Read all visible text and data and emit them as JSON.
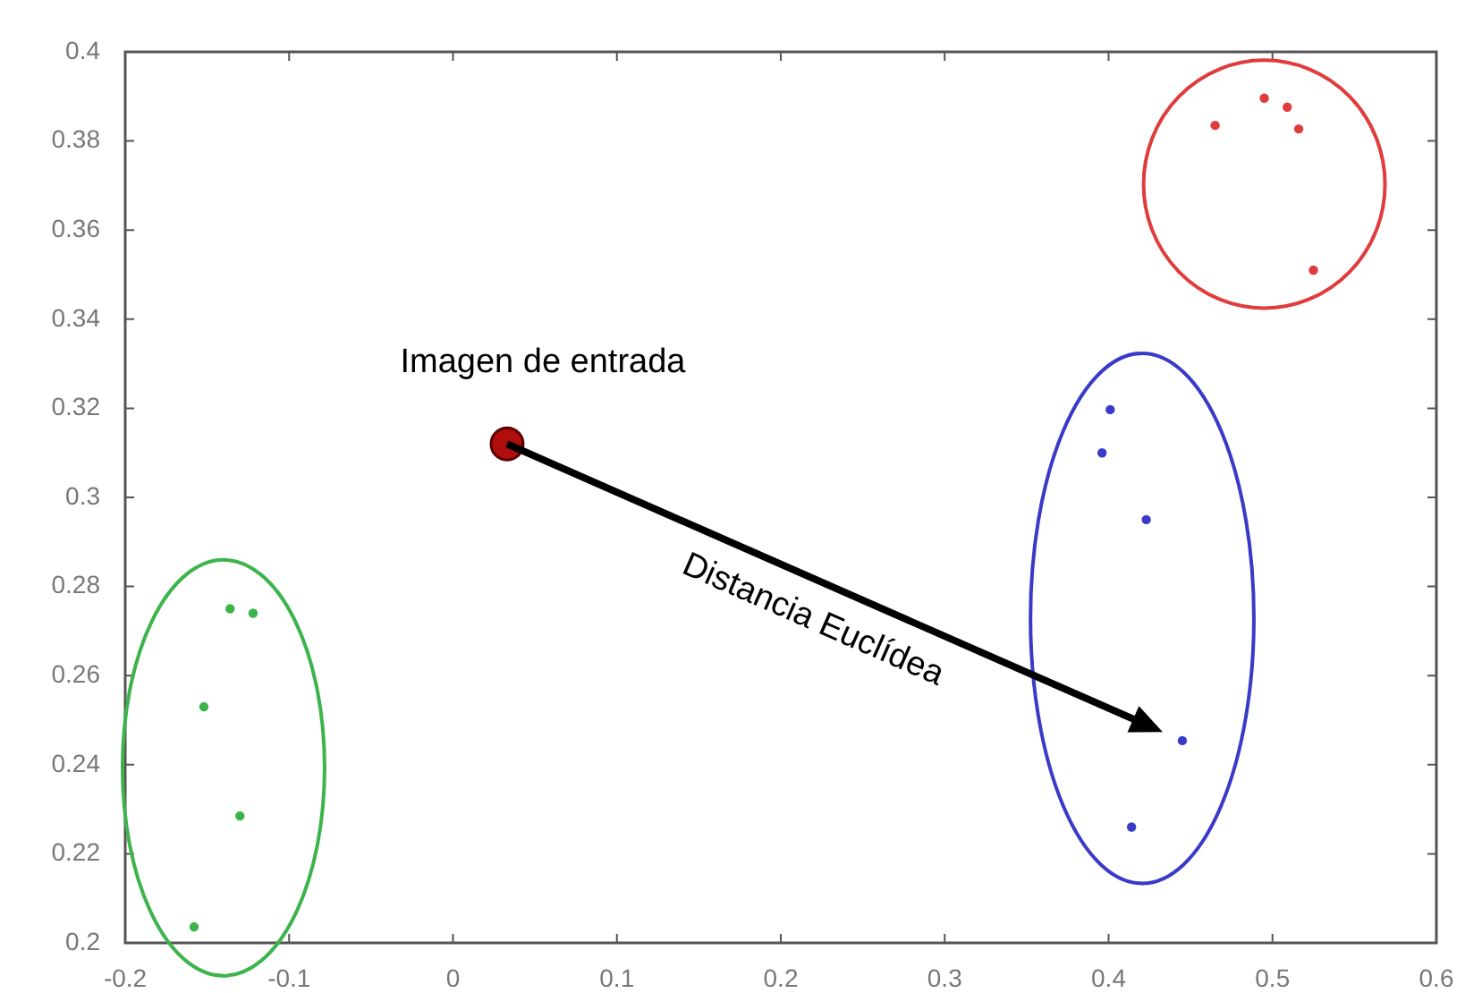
{
  "chart_data": {
    "type": "scatter",
    "xlim": [
      -0.2,
      0.6
    ],
    "xticks": [
      -0.2,
      -0.1,
      0,
      0.1,
      0.2,
      0.3,
      0.4,
      0.5,
      0.6
    ],
    "ylim": [
      0.2,
      0.4
    ],
    "yticks": [
      0.2,
      0.22,
      0.24,
      0.26,
      0.28,
      0.3,
      0.32,
      0.34,
      0.36,
      0.38,
      0.4
    ],
    "grid": false,
    "legend": false,
    "marker": "circle",
    "series": [
      {
        "color": "#3cb44b",
        "x": [
          -0.136,
          -0.122,
          -0.152,
          -0.13,
          -0.158
        ],
        "values": [
          0.275,
          0.274,
          0.253,
          0.2285,
          0.2036
        ]
      },
      {
        "color": "#3a3ac8",
        "x": [
          0.401,
          0.396,
          0.423,
          0.445,
          0.414
        ],
        "values": [
          0.3197,
          0.31,
          0.295,
          0.2454,
          0.226
        ]
      },
      {
        "color": "#e03c3c",
        "x": [
          0.465,
          0.495,
          0.509,
          0.516,
          0.525
        ],
        "values": [
          0.3835,
          0.3896,
          0.3876,
          0.3827,
          0.351
        ]
      },
      {
        "color": "#b00d0d",
        "x": [
          0.033
        ],
        "values": [
          0.312
        ]
      }
    ],
    "annotations": [
      {
        "text": "Imagen de entrada",
        "x": 0.033,
        "y": 0.312
      },
      "Distancia Euclídea"
    ]
  }
}
